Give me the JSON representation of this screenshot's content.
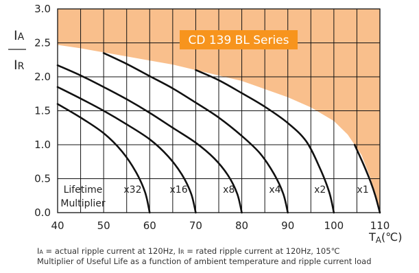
{
  "chart_data": {
    "type": "line",
    "title": "CD 139 BL Series",
    "ylabel_top": "I",
    "ylabel_top_sub": "A",
    "ylabel_bottom": "I",
    "ylabel_bottom_sub": "R",
    "xlabel": "T",
    "xlabel_sub": "A",
    "xlabel_unit": "(℃)",
    "xlim": [
      40,
      110
    ],
    "ylim": [
      0.0,
      3.0
    ],
    "x_ticks": [
      "40",
      "50",
      "60",
      "70",
      "80",
      "90",
      "100",
      "110"
    ],
    "y_ticks": [
      "0.0",
      "0.5",
      "1.0",
      "1.5",
      "2.0",
      "2.5",
      "3.0"
    ],
    "grid": true,
    "colors": {
      "shaded_region": "#f9bf8c",
      "title_box": "#f7941d",
      "title_text": "#ffffff",
      "curves": "#111111"
    },
    "boundary": {
      "points": [
        [
          40,
          2.47
        ],
        [
          45,
          2.42
        ],
        [
          50,
          2.36
        ],
        [
          55,
          2.3
        ],
        [
          60,
          2.24
        ],
        [
          65,
          2.18
        ],
        [
          70,
          2.1
        ],
        [
          75,
          2.02
        ],
        [
          80,
          1.94
        ],
        [
          85,
          1.82
        ],
        [
          90,
          1.7
        ],
        [
          95,
          1.55
        ],
        [
          100,
          1.35
        ],
        [
          103,
          1.15
        ],
        [
          106,
          0.85
        ],
        [
          108,
          0.5
        ],
        [
          109.5,
          0.1
        ],
        [
          110,
          0.0
        ]
      ]
    },
    "multiplier_label": [
      "Lifetime",
      "Multiplier"
    ],
    "series": [
      {
        "name": "x32",
        "label_x": 56.3,
        "points": [
          [
            40,
            1.6
          ],
          [
            45,
            1.4
          ],
          [
            50,
            1.17
          ],
          [
            54,
            0.9
          ],
          [
            57,
            0.6
          ],
          [
            59,
            0.3
          ],
          [
            60,
            0.0
          ]
        ]
      },
      {
        "name": "x16",
        "label_x": 66.3,
        "points": [
          [
            40,
            1.85
          ],
          [
            45,
            1.68
          ],
          [
            50,
            1.5
          ],
          [
            55,
            1.3
          ],
          [
            60,
            1.08
          ],
          [
            64,
            0.83
          ],
          [
            67,
            0.56
          ],
          [
            69,
            0.28
          ],
          [
            70,
            0.0
          ]
        ]
      },
      {
        "name": "x8",
        "label_x": 77.2,
        "points": [
          [
            40,
            2.17
          ],
          [
            45,
            2.02
          ],
          [
            50,
            1.85
          ],
          [
            55,
            1.67
          ],
          [
            60,
            1.47
          ],
          [
            65,
            1.25
          ],
          [
            70,
            1.03
          ],
          [
            74,
            0.8
          ],
          [
            77,
            0.55
          ],
          [
            79,
            0.28
          ],
          [
            80,
            0.0
          ]
        ]
      },
      {
        "name": "x4",
        "label_x": 87.2,
        "points": [
          [
            50,
            2.35
          ],
          [
            55,
            2.19
          ],
          [
            60,
            2.01
          ],
          [
            65,
            1.83
          ],
          [
            70,
            1.62
          ],
          [
            75,
            1.4
          ],
          [
            80,
            1.13
          ],
          [
            84,
            0.87
          ],
          [
            87,
            0.57
          ],
          [
            89,
            0.28
          ],
          [
            90,
            0.0
          ]
        ]
      },
      {
        "name": "x2",
        "label_x": 97.0,
        "points": [
          [
            70,
            2.1
          ],
          [
            75,
            1.95
          ],
          [
            80,
            1.76
          ],
          [
            85,
            1.56
          ],
          [
            90,
            1.32
          ],
          [
            94,
            1.05
          ],
          [
            97,
            0.65
          ],
          [
            99,
            0.3
          ],
          [
            100,
            0.0
          ]
        ]
      },
      {
        "name": "x1",
        "label_x": 106.3,
        "points": [
          [
            104.5,
            1.0
          ],
          [
            106.5,
            0.7
          ],
          [
            108,
            0.45
          ],
          [
            109,
            0.25
          ],
          [
            110,
            0.0
          ]
        ]
      }
    ]
  },
  "caption": {
    "line1_a": "I",
    "line1_a_sub": "A",
    "line1_b": " = actual ripple current at 120Hz, I",
    "line1_b_sub": "R",
    "line1_c": " = rated ripple current at 120Hz, 105℃",
    "line2": "Multiplier of Useful Life as a function of ambient temperature and ripple current load"
  }
}
